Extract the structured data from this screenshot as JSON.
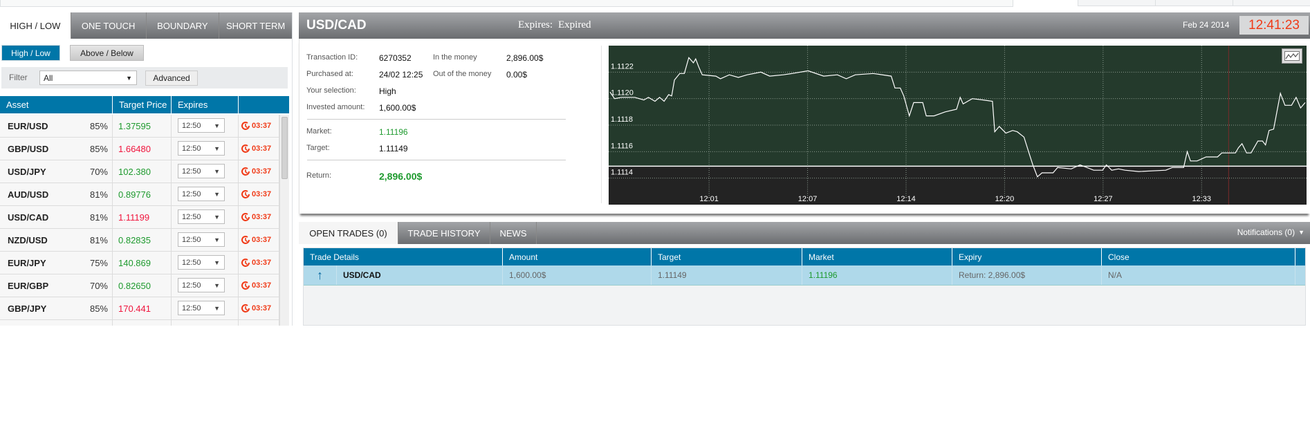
{
  "left": {
    "tabs": [
      "HIGH / LOW",
      "ONE TOUCH",
      "BOUNDARY",
      "SHORT TERM"
    ],
    "active_tab": "HIGH / LOW",
    "sub_buttons": {
      "high_low": "High / Low",
      "above_below": "Above / Below"
    },
    "filter": {
      "label": "Filter",
      "value": "All",
      "advanced": "Advanced"
    },
    "columns": [
      "Asset",
      "Target Price",
      "Expires",
      ""
    ],
    "rows": [
      {
        "asset": "EUR/USD",
        "payout": "85%",
        "price": "1.37595",
        "dir": "up",
        "expires": "12:50",
        "countdown": "03:37"
      },
      {
        "asset": "GBP/USD",
        "payout": "85%",
        "price": "1.66480",
        "dir": "down",
        "expires": "12:50",
        "countdown": "03:37"
      },
      {
        "asset": "USD/JPY",
        "payout": "70%",
        "price": "102.380",
        "dir": "up",
        "expires": "12:50",
        "countdown": "03:37"
      },
      {
        "asset": "AUD/USD",
        "payout": "81%",
        "price": "0.89776",
        "dir": "up",
        "expires": "12:50",
        "countdown": "03:37"
      },
      {
        "asset": "USD/CAD",
        "payout": "81%",
        "price": "1.11199",
        "dir": "down",
        "expires": "12:50",
        "countdown": "03:37"
      },
      {
        "asset": "NZD/USD",
        "payout": "81%",
        "price": "0.82835",
        "dir": "up",
        "expires": "12:50",
        "countdown": "03:37"
      },
      {
        "asset": "EUR/JPY",
        "payout": "75%",
        "price": "140.869",
        "dir": "up",
        "expires": "12:50",
        "countdown": "03:37"
      },
      {
        "asset": "EUR/GBP",
        "payout": "70%",
        "price": "0.82650",
        "dir": "up",
        "expires": "12:50",
        "countdown": "03:37"
      },
      {
        "asset": "GBP/JPY",
        "payout": "85%",
        "price": "170.441",
        "dir": "down",
        "expires": "12:50",
        "countdown": "03:37"
      }
    ]
  },
  "trade": {
    "asset": "USD/CAD",
    "expires_label": "Expires:",
    "expires_value": "Expired",
    "date": "Feb 24 2014",
    "clock": "12:41:23",
    "transaction_id_label": "Transaction ID:",
    "transaction_id": "6270352",
    "purchased_label": "Purchased at:",
    "purchased": "24/02 12:25",
    "selection_label": "Your selection:",
    "selection": "High",
    "invested_label": "Invested amount:",
    "invested": "1,600.00$",
    "in_money_label": "In the money",
    "in_money": "2,896.00$",
    "out_money_label": "Out of the money",
    "out_money": "0.00$",
    "market_label": "Market:",
    "market": "1.11196",
    "target_label": "Target:",
    "target": "1.11149",
    "return_label": "Return:",
    "return": "2,896.00$"
  },
  "colors": {
    "up": "#1e9a2e",
    "down": "#f0143c",
    "header": "#0076a8",
    "chart_bg": "#243a2c",
    "chart_below": "#232323",
    "clock": "#f03a17"
  },
  "chart_data": {
    "type": "line",
    "x_range": [
      "11:54:28",
      "12:40:20"
    ],
    "ylim": [
      1.1112,
      1.1124
    ],
    "y_ticks": [
      "1.1122",
      "1.1120",
      "1.1118",
      "1.1116",
      "1.1114"
    ],
    "x_ticks": [
      {
        "t": "12:01:00",
        "label": "12:01"
      },
      {
        "t": "12:07:30",
        "label": "12:07"
      },
      {
        "t": "12:14:00",
        "label": "12:14"
      },
      {
        "t": "12:20:30",
        "label": "12:20"
      },
      {
        "t": "12:27:00",
        "label": "12:27"
      },
      {
        "t": "12:33:30",
        "label": "12:33"
      }
    ],
    "target_line": 1.11149,
    "marker_time": "12:35:17",
    "grid": true,
    "series": [
      {
        "points": [
          [
            "11:54:28",
            1.11205
          ],
          [
            "11:54:46",
            1.112
          ],
          [
            "11:55:13",
            1.11201
          ],
          [
            "11:56:06",
            1.11201
          ],
          [
            "11:56:42",
            1.11199
          ],
          [
            "11:57:00",
            1.11201
          ],
          [
            "11:57:26",
            1.11198
          ],
          [
            "11:57:44",
            1.11201
          ],
          [
            "11:58:02",
            1.11198
          ],
          [
            "11:58:20",
            1.11203
          ],
          [
            "11:58:32",
            1.11202
          ],
          [
            "11:58:43",
            1.11214
          ],
          [
            "11:59:04",
            1.11219
          ],
          [
            "11:59:22",
            1.11219
          ],
          [
            "11:59:40",
            1.11231
          ],
          [
            "11:59:58",
            1.11227
          ],
          [
            "12:00:07",
            1.1123
          ],
          [
            "12:00:19",
            1.11224
          ],
          [
            "12:00:33",
            1.11218
          ],
          [
            "12:01:27",
            1.11217
          ],
          [
            "12:01:45",
            1.11215
          ],
          [
            "12:02:20",
            1.11218
          ],
          [
            "12:02:56",
            1.11216
          ],
          [
            "12:03:31",
            1.11218
          ],
          [
            "12:04:25",
            1.1122
          ],
          [
            "12:05:00",
            1.11217
          ],
          [
            "12:05:54",
            1.11218
          ],
          [
            "12:06:29",
            1.11219
          ],
          [
            "12:07:32",
            1.11221
          ],
          [
            "12:08:34",
            1.11217
          ],
          [
            "12:09:28",
            1.11218
          ],
          [
            "12:10:03",
            1.11215
          ],
          [
            "12:10:39",
            1.11218
          ],
          [
            "12:11:50",
            1.11219
          ],
          [
            "12:13:01",
            1.11217
          ],
          [
            "12:13:16",
            1.11208
          ],
          [
            "12:13:37",
            1.11208
          ],
          [
            "12:13:51",
            1.11202
          ],
          [
            "12:14:13",
            1.11187
          ],
          [
            "12:14:30",
            1.11197
          ],
          [
            "12:15:06",
            1.11197
          ],
          [
            "12:15:20",
            1.11187
          ],
          [
            "12:15:51",
            1.11187
          ],
          [
            "12:16:35",
            1.1119
          ],
          [
            "12:17:20",
            1.11192
          ],
          [
            "12:17:34",
            1.11201
          ],
          [
            "12:17:46",
            1.11196
          ],
          [
            "12:18:22",
            1.112
          ],
          [
            "12:19:06",
            1.11199
          ],
          [
            "12:19:42",
            1.11198
          ],
          [
            "12:19:51",
            1.11175
          ],
          [
            "12:20:09",
            1.11179
          ],
          [
            "12:20:35",
            1.11174
          ],
          [
            "12:21:02",
            1.11176
          ],
          [
            "12:21:20",
            1.11175
          ],
          [
            "12:21:47",
            1.11171
          ],
          [
            "12:22:05",
            1.1116
          ],
          [
            "12:22:22",
            1.1115
          ],
          [
            "12:22:40",
            1.11141
          ],
          [
            "12:22:58",
            1.11144
          ],
          [
            "12:23:42",
            1.11144
          ],
          [
            "12:24:00",
            1.11148
          ],
          [
            "12:24:54",
            1.11147
          ],
          [
            "12:25:29",
            1.1115
          ],
          [
            "12:26:23",
            1.11146
          ],
          [
            "12:26:58",
            1.11146
          ],
          [
            "12:27:13",
            1.1115
          ],
          [
            "12:27:34",
            1.11146
          ],
          [
            "12:28:01",
            1.11147
          ],
          [
            "12:28:27",
            1.11146
          ],
          [
            "12:29:21",
            1.11145
          ],
          [
            "12:31:08",
            1.11146
          ],
          [
            "12:31:34",
            1.11148
          ],
          [
            "12:32:19",
            1.11148
          ],
          [
            "12:32:33",
            1.1116
          ],
          [
            "12:32:46",
            1.11153
          ],
          [
            "12:33:12",
            1.11153
          ],
          [
            "12:33:48",
            1.11156
          ],
          [
            "12:34:33",
            1.11156
          ],
          [
            "12:34:50",
            1.11159
          ],
          [
            "12:35:44",
            1.11159
          ],
          [
            "12:35:56",
            1.11163
          ],
          [
            "12:36:10",
            1.11166
          ],
          [
            "12:36:28",
            1.11159
          ],
          [
            "12:36:46",
            1.11159
          ],
          [
            "12:37:13",
            1.11168
          ],
          [
            "12:37:31",
            1.11168
          ],
          [
            "12:37:43",
            1.11165
          ],
          [
            "12:37:57",
            1.11176
          ],
          [
            "12:38:15",
            1.11177
          ],
          [
            "12:38:42",
            1.11204
          ],
          [
            "12:39:00",
            1.11195
          ],
          [
            "12:39:26",
            1.11195
          ],
          [
            "12:39:44",
            1.11201
          ],
          [
            "12:40:02",
            1.11193
          ],
          [
            "12:40:20",
            1.11197
          ]
        ]
      }
    ]
  },
  "bottom": {
    "tabs": [
      "OPEN TRADES (0)",
      "TRADE HISTORY",
      "NEWS"
    ],
    "notifications": "Notifications (0)",
    "columns": [
      "Trade Details",
      "Amount",
      "Target",
      "Market",
      "Expiry",
      "Close"
    ],
    "row": {
      "direction": "up",
      "asset": "USD/CAD",
      "amount": "1,600.00$",
      "target": "1.11149",
      "market": "1.11196",
      "expiry": "Return: 2,896.00$",
      "close": "N/A"
    }
  }
}
